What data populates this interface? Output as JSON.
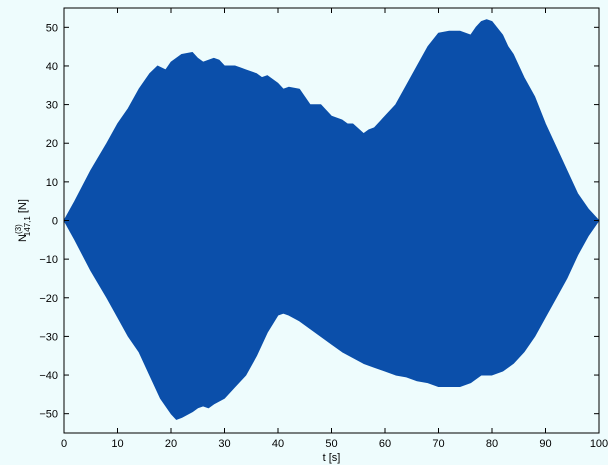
{
  "chart_data": {
    "type": "area",
    "xlabel": "t [s]",
    "ylabel_main": "N",
    "ylabel_sup": "(3)",
    "ylabel_sub": "147,1",
    "ylabel_unit": " [N]",
    "xlim": [
      0,
      100
    ],
    "ylim": [
      -55,
      55
    ],
    "x_ticks": [
      0,
      10,
      20,
      30,
      40,
      50,
      60,
      70,
      80,
      90,
      100
    ],
    "y_ticks": [
      -50,
      -40,
      -30,
      -20,
      -10,
      0,
      10,
      20,
      30,
      40,
      50
    ],
    "grid": false,
    "fill_color": "#0b4faa",
    "background_color": "#eefcfd",
    "series": [
      {
        "upper_envelope": {
          "x": [
            0,
            2,
            5,
            8,
            10,
            12,
            14,
            16,
            17.5,
            19,
            20,
            22,
            24,
            25,
            26,
            28,
            29,
            30,
            32,
            33,
            34,
            36,
            37,
            38,
            40,
            41,
            42,
            44,
            45,
            46,
            48,
            49,
            50,
            52,
            53,
            54,
            56,
            57,
            58,
            60,
            62,
            64,
            66,
            68,
            70,
            72,
            74,
            76,
            77,
            78,
            79,
            80,
            82,
            83,
            84,
            86,
            88,
            90,
            92,
            94,
            96,
            98,
            100
          ],
          "y": [
            0,
            5,
            13,
            20,
            25,
            29,
            34,
            38,
            40,
            39,
            41,
            43,
            43.5,
            42,
            41,
            42,
            41.5,
            40,
            40,
            39.5,
            39,
            38,
            37,
            37.5,
            35.5,
            34,
            34.5,
            34,
            32,
            30,
            30,
            28.5,
            27,
            26,
            25,
            25,
            22.5,
            23.5,
            24,
            27,
            30,
            35,
            40,
            45,
            48.5,
            49,
            49,
            48,
            50,
            51.5,
            52,
            51.5,
            48,
            45,
            43,
            37,
            32,
            25,
            19,
            13,
            7,
            3,
            0
          ]
        },
        "lower_envelope": {
          "x": [
            0,
            2,
            5,
            8,
            10,
            12,
            14,
            16,
            18,
            20,
            21,
            22,
            24,
            25,
            26,
            27,
            28,
            30,
            32,
            34,
            36,
            38,
            40,
            41,
            42,
            44,
            46,
            48,
            50,
            52,
            54,
            56,
            58,
            60,
            62,
            64,
            66,
            68,
            70,
            72,
            74,
            76,
            78,
            80,
            82,
            84,
            86,
            88,
            90,
            92,
            94,
            96,
            98,
            100
          ],
          "y": [
            0,
            -5,
            -13,
            -20,
            -25,
            -30,
            -34,
            -40,
            -46,
            -50,
            -51.5,
            -51,
            -49.5,
            -48.5,
            -48,
            -48.5,
            -47.5,
            -46,
            -43,
            -40,
            -35,
            -29,
            -24.5,
            -24,
            -24.5,
            -26,
            -28,
            -30,
            -32,
            -34,
            -35.5,
            -37,
            -38,
            -39,
            -40,
            -40.5,
            -41.5,
            -42,
            -43,
            -43,
            -43,
            -42,
            -40,
            -40,
            -39,
            -37,
            -34,
            -30,
            -25,
            -20,
            -15,
            -9,
            -4,
            0
          ]
        }
      }
    ]
  }
}
